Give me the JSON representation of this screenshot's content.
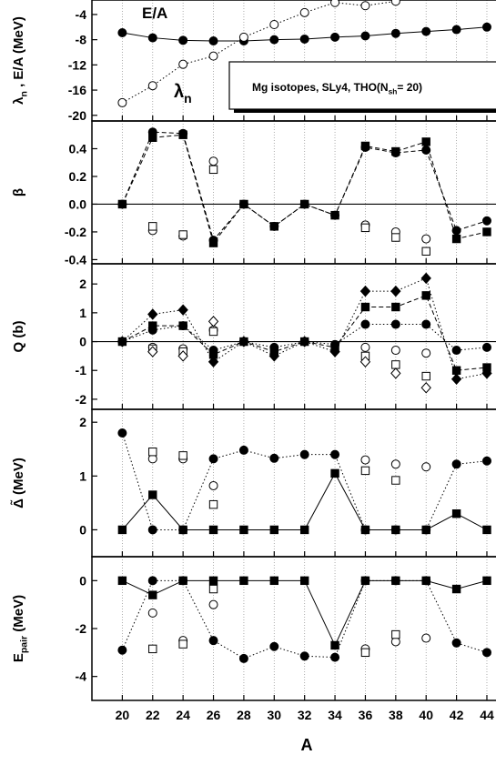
{
  "chart_data": [
    {
      "type": "line",
      "y_label": [
        {
          "text": "λ"
        },
        {
          "text": "n",
          "sub": true
        },
        {
          "text": " , E/A (MeV)"
        }
      ],
      "annotations": [
        [
          {
            "text": "E/A"
          }
        ],
        [
          {
            "text": "λ"
          },
          {
            "text": "n",
            "sub": true
          }
        ]
      ],
      "legend_box": [
        {
          "text": "Mg isotopes, SLy4, THO(N"
        },
        {
          "text": "sh",
          "sub": true
        },
        {
          "text": "= 20)"
        }
      ],
      "x": [
        20,
        22,
        24,
        26,
        28,
        30,
        32,
        34,
        36,
        38,
        40,
        42,
        44
      ],
      "xlim": [
        18,
        44.6
      ],
      "xticks": [
        20,
        22,
        24,
        26,
        28,
        30,
        32,
        34,
        36,
        38,
        40,
        42,
        44
      ],
      "grid": true,
      "ylim": [
        -20.9,
        -1.7
      ],
      "yticks": [
        -4,
        -8,
        -12,
        -16,
        -20
      ],
      "zero_line": false,
      "series": [
        {
          "marker": "circle",
          "filled": true,
          "line": "solid",
          "color": "#000",
          "values": [
            -6.9,
            -7.7,
            -8.1,
            -8.2,
            -8.2,
            -8.0,
            -7.9,
            -7.6,
            -7.4,
            -7.0,
            -6.7,
            -6.4,
            -6.0
          ]
        },
        {
          "marker": "circle",
          "filled": false,
          "line": "dotted",
          "color": "#000",
          "values": [
            -18.0,
            -15.3,
            -11.9,
            -10.6,
            -7.6,
            -5.6,
            -3.7,
            -2.1,
            -2.6,
            -1.9,
            null,
            null,
            null
          ]
        }
      ]
    },
    {
      "type": "line",
      "y_label": [
        {
          "text": "β"
        }
      ],
      "x": [
        20,
        22,
        24,
        26,
        28,
        30,
        32,
        34,
        36,
        38,
        40,
        42,
        44
      ],
      "xlim": [
        18,
        44.6
      ],
      "xticks": [
        20,
        22,
        24,
        26,
        28,
        30,
        32,
        34,
        36,
        38,
        40,
        42,
        44
      ],
      "grid": true,
      "ylim": [
        -0.43,
        0.6
      ],
      "yticks": [
        {
          "value": 0.4,
          "label": "0.4"
        },
        {
          "value": 0.2,
          "label": "0.2"
        },
        {
          "value": 0,
          "label": "0.0"
        },
        {
          "value": -0.2,
          "label": "-0.2"
        },
        {
          "value": -0.4,
          "label": "-0.4"
        }
      ],
      "zero_line": true,
      "series": [
        {
          "marker": "circle",
          "filled": true,
          "line": "dashed",
          "color": "#000",
          "values": [
            0,
            0.52,
            0.51,
            -0.26,
            0,
            -0.16,
            0,
            -0.08,
            0.41,
            0.37,
            0.39,
            -0.19,
            -0.12
          ]
        },
        {
          "marker": "square",
          "filled": true,
          "line": "dashed",
          "color": "#000",
          "values": [
            0,
            0.48,
            0.5,
            -0.28,
            0,
            -0.16,
            0,
            -0.08,
            0.42,
            0.38,
            0.45,
            -0.25,
            -0.2
          ]
        },
        {
          "marker": "circle",
          "filled": false,
          "line": "none",
          "color": "#000",
          "values": [
            null,
            -0.19,
            -0.23,
            0.31,
            null,
            null,
            null,
            null,
            -0.15,
            -0.2,
            -0.25,
            null,
            null
          ]
        },
        {
          "marker": "square",
          "filled": false,
          "line": "none",
          "color": "#000",
          "values": [
            null,
            -0.16,
            -0.22,
            0.25,
            null,
            null,
            null,
            null,
            -0.17,
            -0.24,
            -0.34,
            null,
            null
          ]
        }
      ]
    },
    {
      "type": "line",
      "y_label": [
        {
          "text": "Q (b)"
        }
      ],
      "x": [
        20,
        22,
        24,
        26,
        28,
        30,
        32,
        34,
        36,
        38,
        40,
        42,
        44
      ],
      "xlim": [
        18,
        44.6
      ],
      "xticks": [
        20,
        22,
        24,
        26,
        28,
        30,
        32,
        34,
        36,
        38,
        40,
        42,
        44
      ],
      "grid": true,
      "ylim": [
        -2.35,
        2.7
      ],
      "yticks": [
        2,
        1,
        0,
        -1,
        -2
      ],
      "zero_line": true,
      "series": [
        {
          "marker": "diamond",
          "filled": true,
          "line": "dotted",
          "color": "#000",
          "values": [
            0,
            0.95,
            1.1,
            -0.7,
            0,
            -0.5,
            0,
            -0.35,
            1.75,
            1.75,
            2.2,
            -1.3,
            -1.1
          ]
        },
        {
          "marker": "square",
          "filled": true,
          "line": "dashed",
          "color": "#000",
          "values": [
            0,
            0.55,
            0.55,
            -0.45,
            0,
            -0.35,
            0,
            -0.2,
            1.2,
            1.2,
            1.6,
            -1.0,
            -0.9
          ]
        },
        {
          "marker": "circle",
          "filled": true,
          "line": "dotted",
          "color": "#000",
          "values": [
            0,
            0.4,
            0.55,
            -0.3,
            0,
            -0.2,
            0,
            -0.1,
            0.6,
            0.6,
            0.6,
            -0.3,
            -0.2
          ]
        },
        {
          "marker": "circle",
          "filled": false,
          "line": "none",
          "color": "#000",
          "values": [
            null,
            -0.2,
            -0.25,
            0.4,
            null,
            null,
            null,
            null,
            -0.2,
            -0.3,
            -0.4,
            null,
            null
          ]
        },
        {
          "marker": "square",
          "filled": false,
          "line": "none",
          "color": "#000",
          "values": [
            null,
            -0.25,
            -0.35,
            0.35,
            null,
            null,
            null,
            null,
            -0.5,
            -0.8,
            -1.2,
            null,
            null
          ]
        },
        {
          "marker": "diamond",
          "filled": false,
          "line": "none",
          "color": "#000",
          "values": [
            null,
            -0.35,
            -0.5,
            0.7,
            null,
            null,
            null,
            null,
            -0.7,
            -1.1,
            -1.6,
            null,
            null
          ]
        }
      ]
    },
    {
      "type": "line",
      "y_label": [
        {
          "text": "Δ̃ (MeV)"
        }
      ],
      "x": [
        20,
        22,
        24,
        26,
        28,
        30,
        32,
        34,
        36,
        38,
        40,
        42,
        44
      ],
      "xlim": [
        18,
        44.6
      ],
      "xticks": [
        20,
        22,
        24,
        26,
        28,
        30,
        32,
        34,
        36,
        38,
        40,
        42,
        44
      ],
      "grid": true,
      "ylim": [
        -0.5,
        2.24
      ],
      "yticks": [
        2,
        1,
        0
      ],
      "zero_line": false,
      "series": [
        {
          "marker": "square",
          "filled": true,
          "line": "solid",
          "color": "#000",
          "values": [
            0,
            0.65,
            0,
            0,
            0,
            0,
            0,
            1.05,
            0,
            0,
            0,
            0.3,
            0
          ]
        },
        {
          "marker": "circle",
          "filled": true,
          "line": "dotted",
          "color": "#000",
          "values": [
            1.8,
            0,
            0,
            1.32,
            1.48,
            1.33,
            1.4,
            1.4,
            0,
            0,
            0,
            1.22,
            1.28
          ]
        },
        {
          "marker": "circle",
          "filled": false,
          "line": "none",
          "color": "#000",
          "values": [
            null,
            1.32,
            1.32,
            0.82,
            null,
            null,
            null,
            null,
            1.3,
            1.22,
            1.17,
            null,
            null
          ]
        },
        {
          "marker": "square",
          "filled": false,
          "line": "none",
          "color": "#000",
          "values": [
            null,
            1.45,
            1.38,
            0.47,
            null,
            null,
            null,
            null,
            1.1,
            0.92,
            null,
            null,
            null
          ]
        }
      ]
    },
    {
      "type": "line",
      "y_label": [
        {
          "text": "E"
        },
        {
          "text": "pair",
          "sub": true
        },
        {
          "text": " (MeV)"
        }
      ],
      "x_label": "A",
      "x": [
        20,
        22,
        24,
        26,
        28,
        30,
        32,
        34,
        36,
        38,
        40,
        42,
        44
      ],
      "xlim": [
        18,
        44.6
      ],
      "xticks": [
        20,
        22,
        24,
        26,
        28,
        30,
        32,
        34,
        36,
        38,
        40,
        42,
        44
      ],
      "grid": true,
      "ylim": [
        -5,
        1
      ],
      "yticks": [
        0,
        -2,
        -4
      ],
      "zero_line": false,
      "series": [
        {
          "marker": "square",
          "filled": true,
          "line": "solid",
          "color": "#000",
          "values": [
            0,
            -0.6,
            0,
            0,
            0,
            0,
            0,
            -2.7,
            0,
            0,
            0,
            -0.35,
            0
          ]
        },
        {
          "marker": "circle",
          "filled": true,
          "line": "dotted",
          "color": "#000",
          "values": [
            -2.9,
            0,
            0,
            -2.5,
            -3.25,
            -2.75,
            -3.15,
            -3.2,
            0,
            0,
            0,
            -2.6,
            -3.0
          ]
        },
        {
          "marker": "circle",
          "filled": false,
          "line": "none",
          "color": "#000",
          "values": [
            null,
            -1.35,
            -2.5,
            -1.0,
            null,
            null,
            null,
            null,
            -2.85,
            -2.55,
            -2.4,
            null,
            null
          ]
        },
        {
          "marker": "square",
          "filled": false,
          "line": "none",
          "color": "#000",
          "values": [
            null,
            -2.85,
            -2.65,
            -0.35,
            null,
            null,
            null,
            null,
            -3.0,
            -2.25,
            null,
            null,
            null
          ]
        }
      ]
    }
  ]
}
